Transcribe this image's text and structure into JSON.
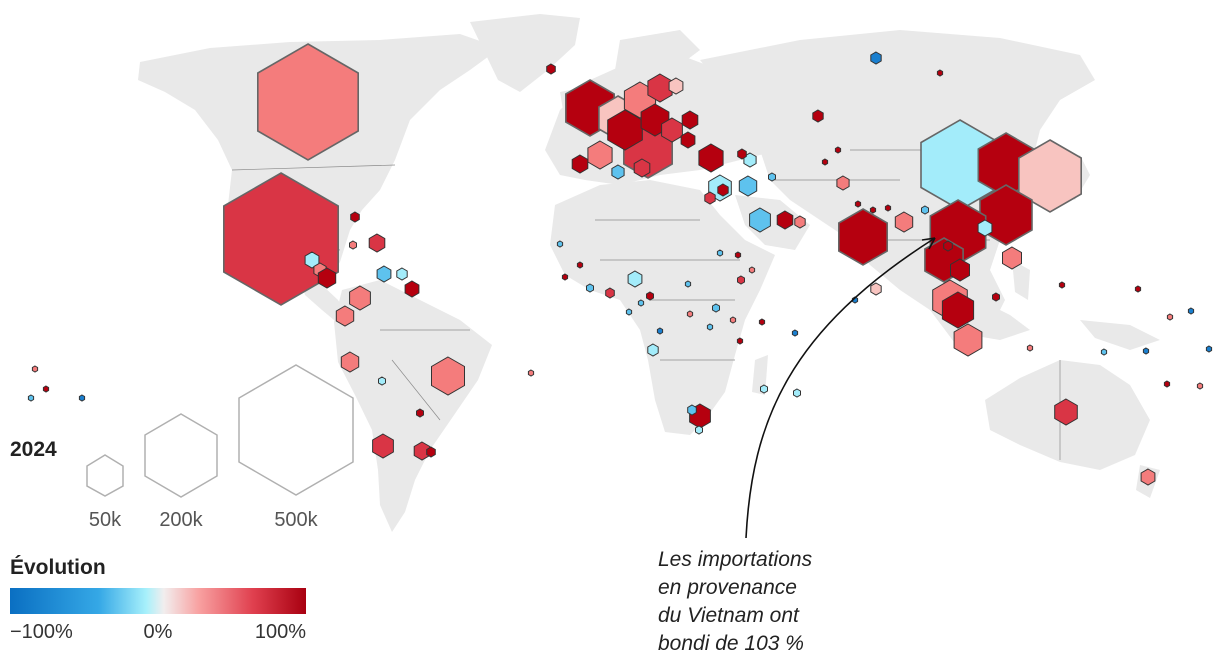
{
  "legend": {
    "size_title": "2024",
    "size_labels": [
      "50k",
      "200k",
      "500k"
    ],
    "color_title": "Évolution",
    "color_labels": [
      "−100%",
      "0%",
      "100%"
    ],
    "color_stops": [
      "#0a6fc2",
      "#35a8e6",
      "#a7f0fb",
      "#f2f2f2",
      "#f8a0a0",
      "#e0404f",
      "#a80010"
    ]
  },
  "annotation": {
    "lines": [
      "Les importations",
      "en provenance",
      "du Vietnam ont",
      "bondi de 103 %"
    ]
  },
  "map_colors": {
    "land": "#e9e9e9",
    "border": "#777777",
    "water": "#ffffff"
  }
}
